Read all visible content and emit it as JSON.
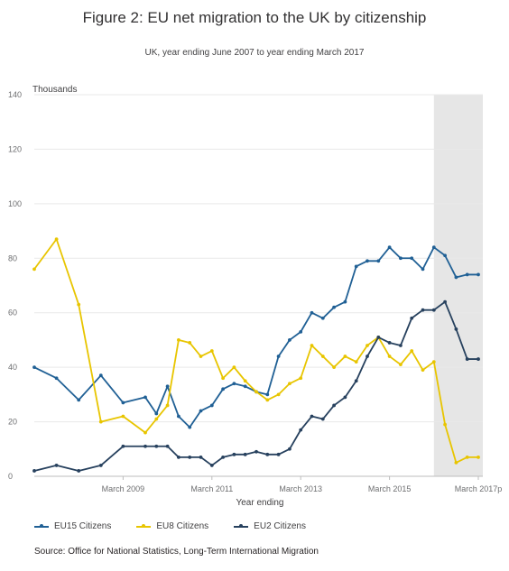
{
  "title": "Figure 2: EU net migration to the UK by citizenship",
  "subtitle": "UK, year ending June 2007 to year ending March 2017",
  "source": "Source: Office for National Statistics, Long-Term International Migration",
  "chart_data": {
    "type": "line",
    "title": "Figure 2: EU net migration to the UK by citizenship",
    "ylabel": "Thousands",
    "xlabel": "Year ending",
    "ylim": [
      0,
      140
    ],
    "yticks": [
      0,
      20,
      40,
      60,
      80,
      100,
      120,
      140
    ],
    "xtick_labels": [
      {
        "label": "March 2009",
        "index": 8
      },
      {
        "label": "March 2011",
        "index": 16
      },
      {
        "label": "March 2013",
        "index": 24
      },
      {
        "label": "March 2015",
        "index": 32
      },
      {
        "label": "March 2017p",
        "index": 40
      }
    ],
    "x_index_range": [
      0,
      40
    ],
    "shaded_region": {
      "from_index": 36,
      "to_index": 40,
      "color": "#e6e6e6"
    },
    "x_points": [
      0,
      2,
      4,
      6,
      8,
      10,
      11,
      12,
      13,
      14,
      15,
      16,
      17,
      18,
      19,
      20,
      21,
      22,
      23,
      24,
      25,
      26,
      27,
      28,
      29,
      30,
      31,
      32,
      33,
      34,
      35,
      36,
      37,
      38,
      39,
      40
    ],
    "series": [
      {
        "name": "EU15 Citizens",
        "color": "#206095",
        "values": [
          40,
          36,
          28,
          37,
          27,
          29,
          23,
          33,
          22,
          18,
          24,
          26,
          32,
          34,
          33,
          31,
          30,
          44,
          50,
          53,
          60,
          58,
          62,
          64,
          77,
          79,
          79,
          84,
          80,
          80,
          76,
          84,
          81,
          73,
          74,
          74
        ]
      },
      {
        "name": "EU8 Citizens",
        "color": "#e8c500",
        "values": [
          76,
          87,
          63,
          20,
          22,
          16,
          21,
          26,
          50,
          49,
          44,
          46,
          36,
          40,
          35,
          31,
          28,
          30,
          34,
          36,
          48,
          44,
          40,
          44,
          42,
          48,
          51,
          44,
          41,
          46,
          39,
          42,
          19,
          5,
          7,
          7
        ]
      },
      {
        "name": "EU2 Citizens",
        "color": "#27415e",
        "values": [
          2,
          4,
          2,
          4,
          11,
          11,
          11,
          11,
          7,
          7,
          7,
          4,
          7,
          8,
          8,
          9,
          8,
          8,
          10,
          17,
          22,
          21,
          26,
          29,
          35,
          44,
          51,
          49,
          48,
          58,
          61,
          61,
          64,
          54,
          43,
          43
        ]
      }
    ]
  }
}
